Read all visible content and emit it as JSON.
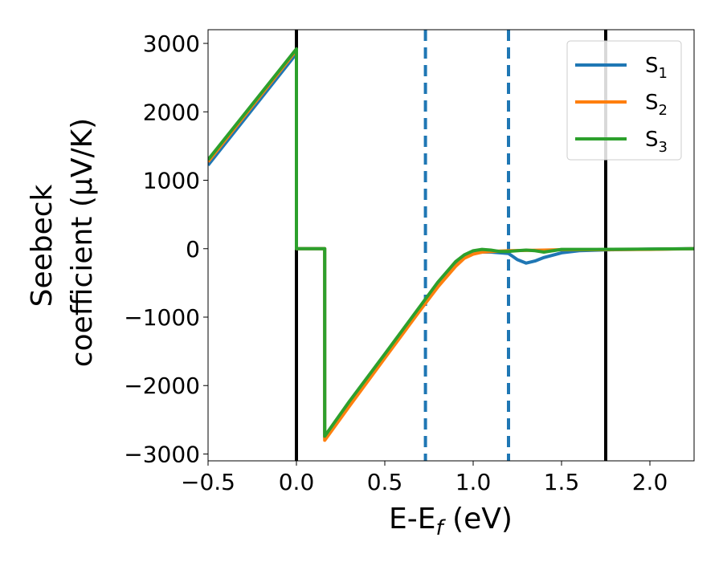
{
  "chart_data": {
    "type": "line",
    "xlabel_main": "E-E",
    "xlabel_sub": "f",
    "xlabel_unit": " (eV)",
    "ylabel_line1": "Seebeck",
    "ylabel_line2": "coefficient  (μV/K)",
    "xlim": [
      -0.5,
      2.25
    ],
    "ylim": [
      -3100,
      3200
    ],
    "xticks": [
      -0.5,
      0.0,
      0.5,
      1.0,
      1.5,
      2.0
    ],
    "xtick_labels": [
      "−0.5",
      "0.0",
      "0.5",
      "1.0",
      "1.5",
      "2.0"
    ],
    "yticks": [
      -3000,
      -2000,
      -1000,
      0,
      1000,
      2000,
      3000
    ],
    "ytick_labels": [
      "−3000",
      "−2000",
      "−1000",
      "0",
      "1000",
      "2000",
      "3000"
    ],
    "grid": false,
    "legend_position": "top-right",
    "series": [
      {
        "name": "S",
        "subscript": "1",
        "color": "#1f77b4",
        "x": [
          -0.5,
          0.0,
          0.0,
          0.16,
          0.16,
          0.3,
          0.5,
          0.7,
          0.8,
          0.9,
          0.95,
          1.0,
          1.05,
          1.1,
          1.15,
          1.2,
          1.25,
          1.3,
          1.35,
          1.4,
          1.5,
          1.6,
          1.8,
          2.0,
          2.25
        ],
        "y": [
          1220,
          2850,
          0,
          0,
          -2760,
          -2260,
          -1560,
          -860,
          -520,
          -240,
          -130,
          -70,
          -50,
          -50,
          -60,
          -70,
          -160,
          -210,
          -180,
          -130,
          -60,
          -30,
          -15,
          -5,
          0
        ]
      },
      {
        "name": "S",
        "subscript": "2",
        "color": "#ff7f0e",
        "x": [
          -0.5,
          0.0,
          0.0,
          0.16,
          0.16,
          0.3,
          0.5,
          0.7,
          0.8,
          0.9,
          0.95,
          1.0,
          1.05,
          1.1,
          1.15,
          1.2,
          1.3,
          1.4,
          1.5,
          1.7,
          2.0,
          2.25
        ],
        "y": [
          1270,
          2900,
          0,
          0,
          -2800,
          -2300,
          -1600,
          -900,
          -560,
          -260,
          -140,
          -80,
          -50,
          -40,
          -35,
          -30,
          -25,
          -20,
          -15,
          -15,
          -10,
          0
        ]
      },
      {
        "name": "S",
        "subscript": "3",
        "color": "#2ca02c",
        "x": [
          -0.5,
          0.0,
          0.0,
          0.16,
          0.16,
          0.3,
          0.5,
          0.7,
          0.8,
          0.9,
          0.95,
          1.0,
          1.05,
          1.1,
          1.15,
          1.2,
          1.25,
          1.3,
          1.35,
          1.4,
          1.5,
          1.7,
          2.0,
          2.25
        ],
        "y": [
          1300,
          2920,
          0,
          0,
          -2740,
          -2230,
          -1540,
          -840,
          -490,
          -190,
          -90,
          -30,
          -10,
          -20,
          -40,
          -40,
          -30,
          -20,
          -30,
          -50,
          -10,
          -10,
          -5,
          0
        ]
      }
    ],
    "vlines": [
      {
        "x": 0.0,
        "color": "#000000",
        "style": "solid"
      },
      {
        "x": 1.75,
        "color": "#000000",
        "style": "solid"
      },
      {
        "x": 0.73,
        "color": "#1f77b4",
        "style": "dashed"
      },
      {
        "x": 1.2,
        "color": "#1f77b4",
        "style": "dashed"
      }
    ]
  }
}
